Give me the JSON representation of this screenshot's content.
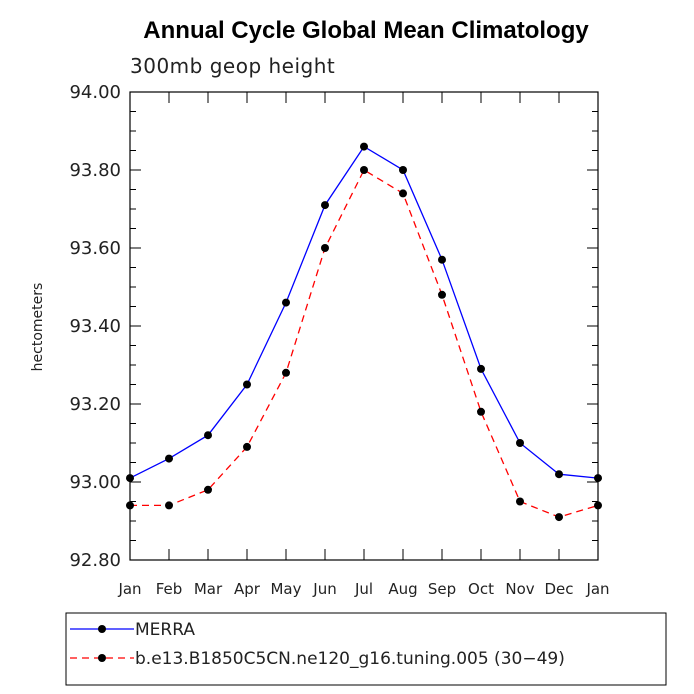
{
  "chart_data": {
    "type": "line",
    "title": "Annual Cycle Global Mean Climatology",
    "subtitle": "300mb geop height",
    "ylabel": "hectometers",
    "xlabel": "",
    "categories": [
      "Jan",
      "Feb",
      "Mar",
      "Apr",
      "May",
      "Jun",
      "Jul",
      "Aug",
      "Sep",
      "Oct",
      "Nov",
      "Dec",
      "Jan"
    ],
    "ylim": [
      92.8,
      94.0
    ],
    "yticks": [
      "92.80",
      "93.00",
      "93.20",
      "93.40",
      "93.60",
      "93.80",
      "94.00"
    ],
    "yticks_values": [
      92.8,
      93.0,
      93.2,
      93.4,
      93.6,
      93.8,
      94.0
    ],
    "grid": false,
    "legend_position": "bottom",
    "series": [
      {
        "name": "MERRA",
        "color": "#0000ff",
        "line_style": "solid",
        "values": [
          93.01,
          93.06,
          93.12,
          93.25,
          93.46,
          93.71,
          93.86,
          93.8,
          93.57,
          93.29,
          93.1,
          93.02,
          93.01
        ]
      },
      {
        "name": "b.e13.B1850C5CN.ne120_g16.tuning.005 (30−49)",
        "color": "#ff0000",
        "line_style": "dashed",
        "values": [
          92.94,
          92.94,
          92.98,
          93.09,
          93.28,
          93.6,
          93.8,
          93.74,
          93.48,
          93.18,
          92.95,
          92.91,
          92.94
        ]
      }
    ]
  }
}
